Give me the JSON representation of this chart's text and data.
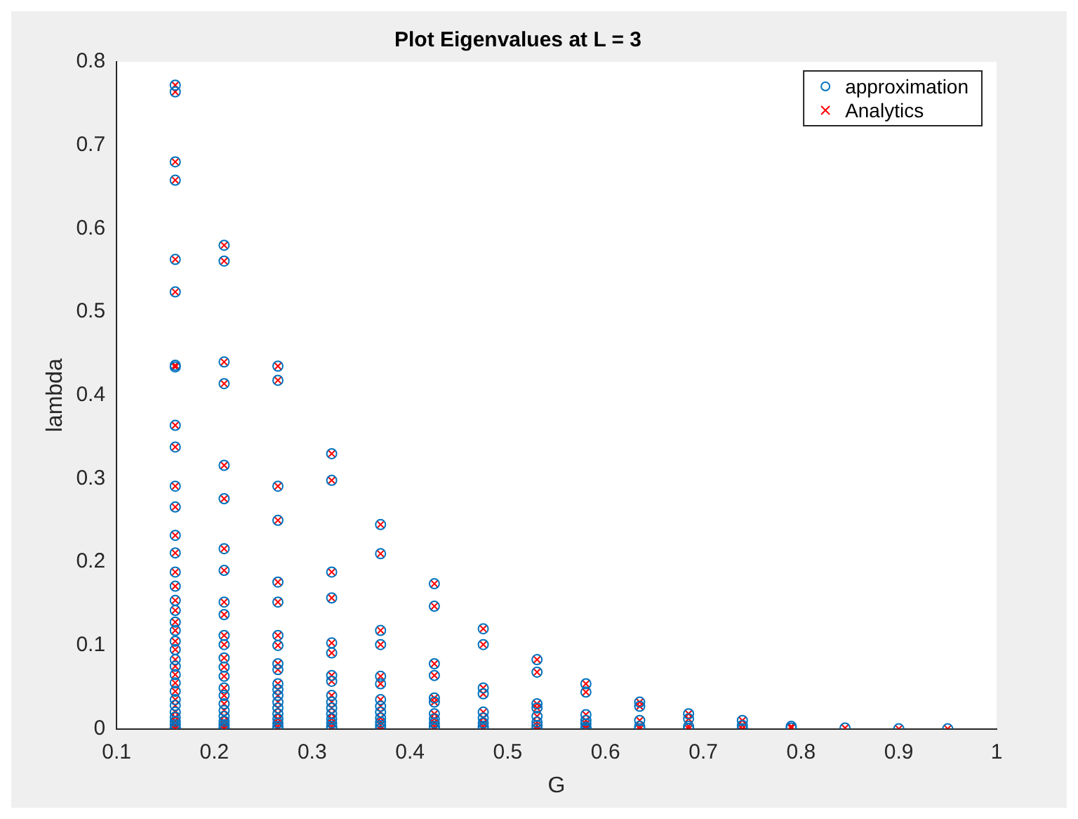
{
  "chart_data": {
    "type": "scatter",
    "title": "Plot Eigenvalues at L = 3",
    "xlabel": "G",
    "ylabel": "lambda",
    "xlim": [
      0.1,
      1
    ],
    "xticks": [
      0.1,
      0.2,
      0.3,
      0.4,
      0.5,
      0.6,
      0.7,
      0.8,
      0.9,
      1
    ],
    "ylim": [
      0,
      0.8
    ],
    "yticks": [
      0,
      0.1,
      0.2,
      0.3,
      0.4,
      0.5,
      0.6,
      0.7,
      0.8
    ],
    "grid": false,
    "legend": "top right",
    "series": [
      {
        "name": "approximation",
        "color": "#0072bd",
        "marker": "circle",
        "x": [
          0.16,
          0.16,
          0.16,
          0.16,
          0.16,
          0.16,
          0.16,
          0.16,
          0.16,
          0.16,
          0.16,
          0.16,
          0.16,
          0.16,
          0.16,
          0.16,
          0.16,
          0.16,
          0.16,
          0.16,
          0.16,
          0.16,
          0.16,
          0.16,
          0.16,
          0.16,
          0.16,
          0.16,
          0.16,
          0.16,
          0.16,
          0.16,
          0.16,
          0.16,
          0.16,
          0.21,
          0.21,
          0.21,
          0.21,
          0.21,
          0.21,
          0.21,
          0.21,
          0.21,
          0.21,
          0.21,
          0.21,
          0.21,
          0.21,
          0.21,
          0.21,
          0.21,
          0.21,
          0.21,
          0.21,
          0.21,
          0.21,
          0.21,
          0.21,
          0.265,
          0.265,
          0.265,
          0.265,
          0.265,
          0.265,
          0.265,
          0.265,
          0.265,
          0.265,
          0.265,
          0.265,
          0.265,
          0.265,
          0.265,
          0.265,
          0.265,
          0.265,
          0.265,
          0.265,
          0.32,
          0.32,
          0.32,
          0.32,
          0.32,
          0.32,
          0.32,
          0.32,
          0.32,
          0.32,
          0.32,
          0.32,
          0.32,
          0.32,
          0.32,
          0.32,
          0.37,
          0.37,
          0.37,
          0.37,
          0.37,
          0.37,
          0.37,
          0.37,
          0.37,
          0.37,
          0.37,
          0.37,
          0.37,
          0.425,
          0.425,
          0.425,
          0.425,
          0.425,
          0.425,
          0.425,
          0.425,
          0.425,
          0.425,
          0.425,
          0.475,
          0.475,
          0.475,
          0.475,
          0.475,
          0.475,
          0.475,
          0.475,
          0.475,
          0.53,
          0.53,
          0.53,
          0.53,
          0.53,
          0.53,
          0.53,
          0.53,
          0.58,
          0.58,
          0.58,
          0.58,
          0.58,
          0.58,
          0.58,
          0.635,
          0.635,
          0.635,
          0.635,
          0.635,
          0.685,
          0.685,
          0.685,
          0.685,
          0.74,
          0.74,
          0.74,
          0.79,
          0.79,
          0.845,
          0.9,
          0.95
        ],
        "values": [
          0.772,
          0.764,
          0.68,
          0.658,
          0.563,
          0.524,
          0.436,
          0.434,
          0.364,
          0.338,
          0.291,
          0.266,
          0.232,
          0.211,
          0.188,
          0.171,
          0.154,
          0.142,
          0.128,
          0.118,
          0.105,
          0.095,
          0.083,
          0.075,
          0.065,
          0.055,
          0.045,
          0.035,
          0.028,
          0.02,
          0.014,
          0.009,
          0.005,
          0.002,
          0,
          0.58,
          0.561,
          0.44,
          0.414,
          0.316,
          0.276,
          0.216,
          0.19,
          0.152,
          0.137,
          0.112,
          0.101,
          0.085,
          0.074,
          0.063,
          0.049,
          0.04,
          0.03,
          0.022,
          0.015,
          0.009,
          0.005,
          0.002,
          0,
          0.435,
          0.418,
          0.291,
          0.25,
          0.176,
          0.152,
          0.112,
          0.1,
          0.078,
          0.071,
          0.054,
          0.047,
          0.04,
          0.032,
          0.025,
          0.018,
          0.012,
          0.007,
          0.003,
          0,
          0.33,
          0.298,
          0.188,
          0.157,
          0.103,
          0.091,
          0.064,
          0.057,
          0.04,
          0.032,
          0.025,
          0.018,
          0.012,
          0.007,
          0.003,
          0,
          0.245,
          0.21,
          0.118,
          0.101,
          0.063,
          0.054,
          0.035,
          0.027,
          0.02,
          0.013,
          0.008,
          0.004,
          0,
          0.174,
          0.147,
          0.078,
          0.064,
          0.037,
          0.032,
          0.018,
          0.012,
          0.007,
          0.003,
          0,
          0.12,
          0.101,
          0.049,
          0.042,
          0.02,
          0.013,
          0.007,
          0.003,
          0,
          0.083,
          0.068,
          0.03,
          0.025,
          0.015,
          0.008,
          0.004,
          0,
          0.054,
          0.044,
          0.017,
          0.01,
          0.006,
          0.002,
          0,
          0.032,
          0.027,
          0.01,
          0.003,
          0,
          0.018,
          0.012,
          0.003,
          0,
          0.01,
          0.004,
          0,
          0.003,
          0.001,
          0.001,
          0,
          0
        ]
      },
      {
        "name": "Analytics",
        "color": "#ff0000",
        "marker": "cross",
        "x": [
          0.16,
          0.16,
          0.16,
          0.16,
          0.16,
          0.16,
          0.16,
          0.16,
          0.16,
          0.16,
          0.16,
          0.16,
          0.16,
          0.16,
          0.16,
          0.16,
          0.16,
          0.16,
          0.16,
          0.16,
          0.16,
          0.16,
          0.16,
          0.16,
          0.16,
          0.16,
          0.16,
          0.16,
          0.16,
          0.16,
          0.16,
          0.16,
          0.16,
          0.16,
          0.16,
          0.21,
          0.21,
          0.21,
          0.21,
          0.21,
          0.21,
          0.21,
          0.21,
          0.21,
          0.21,
          0.21,
          0.21,
          0.21,
          0.21,
          0.21,
          0.21,
          0.21,
          0.21,
          0.21,
          0.21,
          0.21,
          0.21,
          0.21,
          0.21,
          0.265,
          0.265,
          0.265,
          0.265,
          0.265,
          0.265,
          0.265,
          0.265,
          0.265,
          0.265,
          0.265,
          0.265,
          0.265,
          0.265,
          0.265,
          0.265,
          0.265,
          0.265,
          0.265,
          0.265,
          0.32,
          0.32,
          0.32,
          0.32,
          0.32,
          0.32,
          0.32,
          0.32,
          0.32,
          0.32,
          0.32,
          0.32,
          0.32,
          0.32,
          0.32,
          0.32,
          0.37,
          0.37,
          0.37,
          0.37,
          0.37,
          0.37,
          0.37,
          0.37,
          0.37,
          0.37,
          0.37,
          0.37,
          0.37,
          0.425,
          0.425,
          0.425,
          0.425,
          0.425,
          0.425,
          0.425,
          0.425,
          0.425,
          0.425,
          0.425,
          0.475,
          0.475,
          0.475,
          0.475,
          0.475,
          0.475,
          0.475,
          0.475,
          0.475,
          0.53,
          0.53,
          0.53,
          0.53,
          0.53,
          0.53,
          0.53,
          0.53,
          0.58,
          0.58,
          0.58,
          0.58,
          0.58,
          0.58,
          0.58,
          0.635,
          0.635,
          0.635,
          0.635,
          0.635,
          0.685,
          0.685,
          0.685,
          0.685,
          0.74,
          0.74,
          0.74,
          0.79,
          0.79,
          0.845,
          0.9,
          0.95
        ],
        "values": [
          0.772,
          0.764,
          0.68,
          0.658,
          0.563,
          0.524,
          0.436,
          0.434,
          0.364,
          0.338,
          0.291,
          0.266,
          0.232,
          0.211,
          0.188,
          0.171,
          0.154,
          0.142,
          0.128,
          0.118,
          0.105,
          0.095,
          0.083,
          0.075,
          0.065,
          0.055,
          0.045,
          0.035,
          0.028,
          0.02,
          0.014,
          0.009,
          0.005,
          0.002,
          0,
          0.58,
          0.561,
          0.44,
          0.414,
          0.316,
          0.276,
          0.216,
          0.19,
          0.152,
          0.137,
          0.112,
          0.101,
          0.085,
          0.074,
          0.063,
          0.049,
          0.04,
          0.03,
          0.022,
          0.015,
          0.009,
          0.005,
          0.002,
          0,
          0.435,
          0.418,
          0.291,
          0.25,
          0.176,
          0.152,
          0.112,
          0.1,
          0.078,
          0.071,
          0.054,
          0.047,
          0.04,
          0.032,
          0.025,
          0.018,
          0.012,
          0.007,
          0.003,
          0,
          0.33,
          0.298,
          0.188,
          0.157,
          0.103,
          0.091,
          0.064,
          0.057,
          0.04,
          0.032,
          0.025,
          0.018,
          0.012,
          0.007,
          0.003,
          0,
          0.245,
          0.21,
          0.118,
          0.101,
          0.063,
          0.054,
          0.035,
          0.027,
          0.02,
          0.013,
          0.008,
          0.004,
          0,
          0.174,
          0.147,
          0.078,
          0.064,
          0.037,
          0.032,
          0.018,
          0.012,
          0.007,
          0.003,
          0,
          0.12,
          0.101,
          0.049,
          0.042,
          0.02,
          0.013,
          0.007,
          0.003,
          0,
          0.083,
          0.068,
          0.03,
          0.025,
          0.015,
          0.008,
          0.004,
          0,
          0.054,
          0.044,
          0.017,
          0.01,
          0.006,
          0.002,
          0,
          0.032,
          0.027,
          0.01,
          0.003,
          0,
          0.018,
          0.012,
          0.003,
          0,
          0.01,
          0.004,
          0,
          0.003,
          0.001,
          0.001,
          0,
          0
        ]
      }
    ]
  }
}
